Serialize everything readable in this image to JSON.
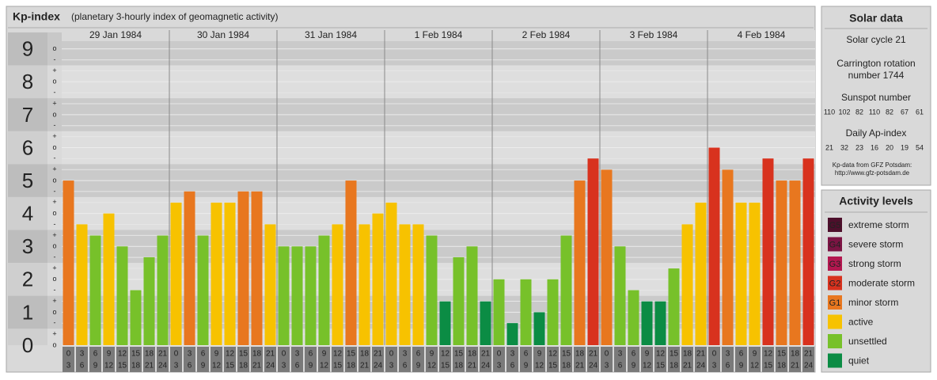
{
  "chart_data": {
    "type": "bar",
    "title": "Kp-index",
    "subtitle": "(planetary 3-hourly index of geomagnetic activity)",
    "days": [
      "29 Jan 1984",
      "30 Jan 1984",
      "31 Jan 1984",
      "1 Feb 1984",
      "2 Feb 1984",
      "3 Feb 1984",
      "4 Feb 1984"
    ],
    "time_slots": [
      [
        "0",
        "3"
      ],
      [
        "3",
        "6"
      ],
      [
        "6",
        "9"
      ],
      [
        "9",
        "12"
      ],
      [
        "12",
        "15"
      ],
      [
        "15",
        "18"
      ],
      [
        "18",
        "21"
      ],
      [
        "21",
        "24"
      ]
    ],
    "values": [
      5,
      3.67,
      3.33,
      4,
      3,
      1.67,
      2.67,
      3.33,
      4.33,
      4.67,
      3.33,
      4.33,
      4.33,
      4.67,
      4.67,
      3.67,
      3,
      3,
      3,
      3.33,
      3.67,
      5,
      3.67,
      4,
      4.33,
      3.67,
      3.67,
      3.33,
      1.33,
      2.67,
      3,
      1.33,
      2,
      0.67,
      2,
      1,
      2,
      3.33,
      5,
      5.67,
      5.33,
      3,
      1.67,
      1.33,
      1.33,
      2.33,
      3.67,
      4.33,
      6,
      5.33,
      4.33,
      4.33,
      5.67,
      5,
      5,
      5.67
    ],
    "colors": [
      "#e8771f",
      "#f7c200",
      "#77c12a",
      "#f7c200",
      "#77c12a",
      "#77c12a",
      "#77c12a",
      "#77c12a",
      "#f7c200",
      "#e8771f",
      "#77c12a",
      "#f7c200",
      "#f7c200",
      "#e8771f",
      "#e8771f",
      "#f7c200",
      "#77c12a",
      "#77c12a",
      "#77c12a",
      "#77c12a",
      "#f7c200",
      "#e8771f",
      "#f7c200",
      "#f7c200",
      "#f7c200",
      "#f7c200",
      "#f7c200",
      "#77c12a",
      "#0b8c44",
      "#77c12a",
      "#77c12a",
      "#0b8c44",
      "#77c12a",
      "#0b8c44",
      "#77c12a",
      "#0b8c44",
      "#77c12a",
      "#77c12a",
      "#e8771f",
      "#d8321e",
      "#e8771f",
      "#77c12a",
      "#77c12a",
      "#0b8c44",
      "#0b8c44",
      "#77c12a",
      "#f7c200",
      "#f7c200",
      "#d8321e",
      "#e8771f",
      "#f7c200",
      "#f7c200",
      "#d8321e",
      "#e8771f",
      "#e8771f",
      "#d8321e"
    ],
    "ylim": [
      0,
      9.33
    ],
    "yticks": [
      0,
      1,
      2,
      3,
      4,
      5,
      6,
      7,
      8,
      9
    ],
    "minor_tick_labels": [
      "-",
      "o",
      "+"
    ],
    "grid": true
  },
  "side_panel": {
    "title": "Solar data",
    "solar_cycle": "Solar cycle 21",
    "carrington": [
      "Carrington rotation",
      "number 1744"
    ],
    "sunspot_title": "Sunspot number",
    "sunspot_numbers": [
      110,
      102,
      82,
      110,
      82,
      67,
      61
    ],
    "ap_title": "Daily Ap-index",
    "ap_values": [
      21,
      32,
      23,
      16,
      20,
      19,
      54
    ],
    "source": [
      "Kp-data from GFZ Potsdam:",
      "http://www.gfz-potsdam.de"
    ]
  },
  "legend": {
    "title": "Activity levels",
    "levels": [
      {
        "code": "G5",
        "name": "extreme storm",
        "color": "#4d0f2b"
      },
      {
        "code": "G4",
        "name": "severe storm",
        "color": "#7b1443"
      },
      {
        "code": "G3",
        "name": "strong storm",
        "color": "#b3174f"
      },
      {
        "code": "G2",
        "name": "moderate storm",
        "color": "#d8321e"
      },
      {
        "code": "G1",
        "name": "minor storm",
        "color": "#e8771f"
      },
      {
        "name": "active",
        "color": "#f7c200"
      },
      {
        "name": "unsettled",
        "color": "#77c12a"
      },
      {
        "name": "quiet",
        "color": "#0b8c44"
      }
    ]
  }
}
